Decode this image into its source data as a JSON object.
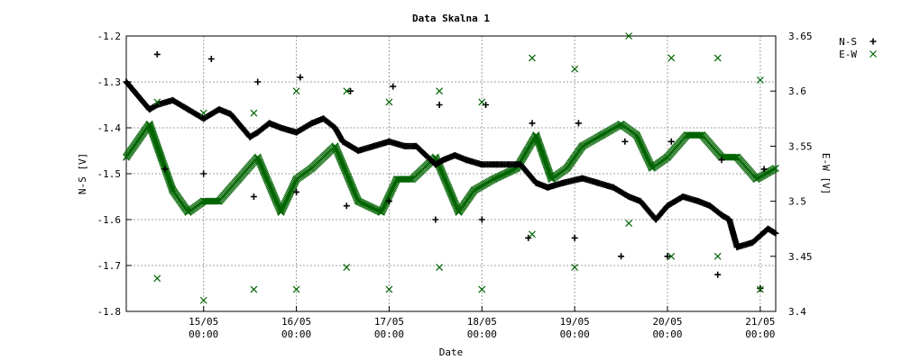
{
  "chart_data": {
    "type": "line",
    "title": "Data Skalna 1",
    "xlabel": "Date",
    "ylabel_left": "N-S [V]",
    "ylabel_right": "E-W [V]",
    "xlim": [
      "2024-05-14T04:00",
      "2024-05-21T04:00"
    ],
    "ylim_left": [
      -1.8,
      -1.2
    ],
    "ylim_right": [
      3.4,
      3.65
    ],
    "grid": true,
    "legend_position": "top-right",
    "x_ticks": [
      {
        "date": "15/05",
        "time": "00:00",
        "x": "2024-05-15T00:00"
      },
      {
        "date": "16/05",
        "time": "00:00",
        "x": "2024-05-16T00:00"
      },
      {
        "date": "17/05",
        "time": "00:00",
        "x": "2024-05-17T00:00"
      },
      {
        "date": "18/05",
        "time": "00:00",
        "x": "2024-05-18T00:00"
      },
      {
        "date": "19/05",
        "time": "00:00",
        "x": "2024-05-19T00:00"
      },
      {
        "date": "20/05",
        "time": "00:00",
        "x": "2024-05-20T00:00"
      },
      {
        "date": "21/05",
        "time": "00:00",
        "x": "2024-05-21T00:00"
      }
    ],
    "y_ticks_left": [
      "-1.2",
      "-1.3",
      "-1.4",
      "-1.5",
      "-1.6",
      "-1.7",
      "-1.8"
    ],
    "y_ticks_right": [
      "3.65",
      "3.6",
      "3.55",
      "3.5",
      "3.45",
      "3.4"
    ],
    "series": [
      {
        "name": "N-S",
        "axis": "left",
        "marker": "plus",
        "color": "#000000",
        "x": [
          "2024-05-14T04:00",
          "2024-05-14T06:00",
          "2024-05-14T10:00",
          "2024-05-14T12:00",
          "2024-05-14T16:00",
          "2024-05-14T20:00",
          "2024-05-15T00:00",
          "2024-05-15T04:00",
          "2024-05-15T07:00",
          "2024-05-15T12:00",
          "2024-05-15T14:00",
          "2024-05-15T17:00",
          "2024-05-15T20:00",
          "2024-05-16T00:00",
          "2024-05-16T04:00",
          "2024-05-16T07:00",
          "2024-05-16T10:00",
          "2024-05-16T12:00",
          "2024-05-16T16:00",
          "2024-05-16T20:00",
          "2024-05-17T00:00",
          "2024-05-17T04:00",
          "2024-05-17T07:00",
          "2024-05-17T12:00",
          "2024-05-17T14:00",
          "2024-05-17T17:00",
          "2024-05-17T20:00",
          "2024-05-18T00:00",
          "2024-05-18T04:00",
          "2024-05-18T10:00",
          "2024-05-18T14:00",
          "2024-05-18T17:00",
          "2024-05-18T21:00",
          "2024-05-19T02:00",
          "2024-05-19T06:00",
          "2024-05-19T10:00",
          "2024-05-19T14:00",
          "2024-05-19T17:00",
          "2024-05-19T21:00",
          "2024-05-20T00:00",
          "2024-05-20T04:00",
          "2024-05-20T08:00",
          "2024-05-20T11:00",
          "2024-05-20T14:00",
          "2024-05-20T16:00",
          "2024-05-20T18:00",
          "2024-05-20T22:00",
          "2024-05-21T02:00",
          "2024-05-21T04:00"
        ],
        "y": [
          -1.3,
          -1.32,
          -1.36,
          -1.35,
          -1.34,
          -1.36,
          -1.38,
          -1.36,
          -1.37,
          -1.42,
          -1.41,
          -1.39,
          -1.4,
          -1.41,
          -1.39,
          -1.38,
          -1.4,
          -1.43,
          -1.45,
          -1.44,
          -1.43,
          -1.44,
          -1.44,
          -1.48,
          -1.47,
          -1.46,
          -1.47,
          -1.48,
          -1.48,
          -1.48,
          -1.52,
          -1.53,
          -1.52,
          -1.51,
          -1.52,
          -1.53,
          -1.55,
          -1.56,
          -1.6,
          -1.57,
          -1.55,
          -1.56,
          -1.57,
          -1.59,
          -1.6,
          -1.66,
          -1.65,
          -1.62,
          -1.63
        ]
      },
      {
        "name": "E-W",
        "axis": "right",
        "marker": "cross",
        "color": "#006400",
        "x": [
          "2024-05-14T04:00",
          "2024-05-14T10:00",
          "2024-05-14T16:00",
          "2024-05-14T20:00",
          "2024-05-15T00:00",
          "2024-05-15T04:00",
          "2024-05-15T09:00",
          "2024-05-15T14:00",
          "2024-05-15T20:00",
          "2024-05-16T00:00",
          "2024-05-16T04:00",
          "2024-05-16T10:00",
          "2024-05-16T16:00",
          "2024-05-16T22:00",
          "2024-05-17T02:00",
          "2024-05-17T06:00",
          "2024-05-17T12:00",
          "2024-05-17T18:00",
          "2024-05-17T22:00",
          "2024-05-18T03:00",
          "2024-05-18T09:00",
          "2024-05-18T14:00",
          "2024-05-18T18:00",
          "2024-05-18T22:00",
          "2024-05-19T02:00",
          "2024-05-19T07:00",
          "2024-05-19T12:00",
          "2024-05-19T16:00",
          "2024-05-19T20:00",
          "2024-05-20T00:00",
          "2024-05-20T05:00",
          "2024-05-20T09:00",
          "2024-05-20T14:00",
          "2024-05-20T18:00",
          "2024-05-20T23:00",
          "2024-05-21T04:00"
        ],
        "y": [
          3.54,
          3.57,
          3.51,
          3.49,
          3.5,
          3.5,
          3.52,
          3.54,
          3.49,
          3.52,
          3.53,
          3.55,
          3.5,
          3.49,
          3.52,
          3.52,
          3.54,
          3.49,
          3.51,
          3.52,
          3.53,
          3.56,
          3.52,
          3.53,
          3.55,
          3.56,
          3.57,
          3.56,
          3.53,
          3.54,
          3.56,
          3.56,
          3.54,
          3.54,
          3.52,
          3.53
        ]
      }
    ],
    "outliers_ns": [
      {
        "x": "2024-05-14T12:00",
        "y": -1.24
      },
      {
        "x": "2024-05-14T14:00",
        "y": -1.49
      },
      {
        "x": "2024-05-15T00:00",
        "y": -1.5
      },
      {
        "x": "2024-05-15T02:00",
        "y": -1.25
      },
      {
        "x": "2024-05-15T13:00",
        "y": -1.55
      },
      {
        "x": "2024-05-15T14:00",
        "y": -1.3
      },
      {
        "x": "2024-05-16T00:00",
        "y": -1.54
      },
      {
        "x": "2024-05-16T01:00",
        "y": -1.29
      },
      {
        "x": "2024-05-16T13:00",
        "y": -1.57
      },
      {
        "x": "2024-05-16T14:00",
        "y": -1.32
      },
      {
        "x": "2024-05-17T00:00",
        "y": -1.56
      },
      {
        "x": "2024-05-17T01:00",
        "y": -1.31
      },
      {
        "x": "2024-05-17T12:00",
        "y": -1.6
      },
      {
        "x": "2024-05-17T13:00",
        "y": -1.35
      },
      {
        "x": "2024-05-18T00:00",
        "y": -1.6
      },
      {
        "x": "2024-05-18T01:00",
        "y": -1.35
      },
      {
        "x": "2024-05-18T12:00",
        "y": -1.64
      },
      {
        "x": "2024-05-18T13:00",
        "y": -1.39
      },
      {
        "x": "2024-05-19T00:00",
        "y": -1.64
      },
      {
        "x": "2024-05-19T01:00",
        "y": -1.39
      },
      {
        "x": "2024-05-19T12:00",
        "y": -1.68
      },
      {
        "x": "2024-05-19T13:00",
        "y": -1.43
      },
      {
        "x": "2024-05-20T00:00",
        "y": -1.68
      },
      {
        "x": "2024-05-20T01:00",
        "y": -1.43
      },
      {
        "x": "2024-05-20T13:00",
        "y": -1.72
      },
      {
        "x": "2024-05-20T14:00",
        "y": -1.47
      },
      {
        "x": "2024-05-21T00:00",
        "y": -1.75
      },
      {
        "x": "2024-05-21T01:00",
        "y": -1.49
      }
    ],
    "outliers_ew": [
      {
        "x": "2024-05-14T12:00",
        "y": 3.59
      },
      {
        "x": "2024-05-14T12:00",
        "y": 3.43
      },
      {
        "x": "2024-05-15T00:00",
        "y": 3.58
      },
      {
        "x": "2024-05-15T00:00",
        "y": 3.41
      },
      {
        "x": "2024-05-15T13:00",
        "y": 3.58
      },
      {
        "x": "2024-05-15T13:00",
        "y": 3.42
      },
      {
        "x": "2024-05-16T00:00",
        "y": 3.6
      },
      {
        "x": "2024-05-16T00:00",
        "y": 3.42
      },
      {
        "x": "2024-05-16T13:00",
        "y": 3.6
      },
      {
        "x": "2024-05-16T13:00",
        "y": 3.44
      },
      {
        "x": "2024-05-17T00:00",
        "y": 3.59
      },
      {
        "x": "2024-05-17T00:00",
        "y": 3.42
      },
      {
        "x": "2024-05-17T13:00",
        "y": 3.6
      },
      {
        "x": "2024-05-17T13:00",
        "y": 3.44
      },
      {
        "x": "2024-05-18T00:00",
        "y": 3.59
      },
      {
        "x": "2024-05-18T00:00",
        "y": 3.42
      },
      {
        "x": "2024-05-18T13:00",
        "y": 3.63
      },
      {
        "x": "2024-05-18T13:00",
        "y": 3.47
      },
      {
        "x": "2024-05-19T00:00",
        "y": 3.62
      },
      {
        "x": "2024-05-19T00:00",
        "y": 3.44
      },
      {
        "x": "2024-05-19T14:00",
        "y": 3.65
      },
      {
        "x": "2024-05-19T14:00",
        "y": 3.48
      },
      {
        "x": "2024-05-20T01:00",
        "y": 3.63
      },
      {
        "x": "2024-05-20T01:00",
        "y": 3.45
      },
      {
        "x": "2024-05-20T13:00",
        "y": 3.63
      },
      {
        "x": "2024-05-20T13:00",
        "y": 3.45
      },
      {
        "x": "2024-05-21T00:00",
        "y": 3.61
      },
      {
        "x": "2024-05-21T00:00",
        "y": 3.42
      }
    ]
  }
}
